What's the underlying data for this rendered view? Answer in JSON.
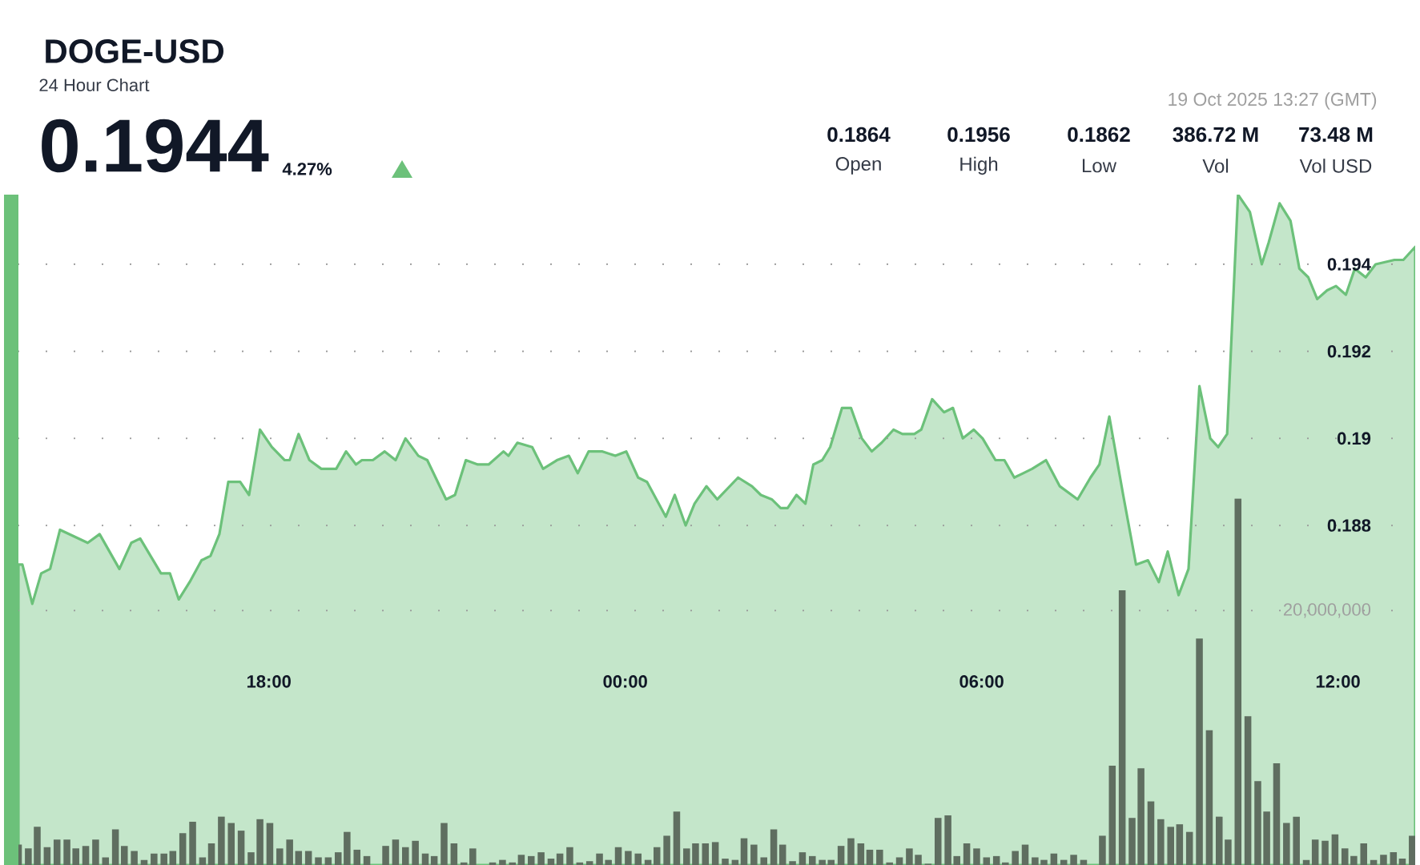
{
  "chart_data": {
    "type": "area",
    "title": "DOGE-USD",
    "subtitle": "24 Hour Chart",
    "annotations": [
      "0.1944",
      "4.27%",
      "19 Oct 2025 13:27 (GMT)",
      "0.1864",
      "0.1956",
      "0.1862",
      "386.72 M",
      "73.48 M",
      "Open",
      "High",
      "Low",
      "Vol",
      "Vol USD"
    ],
    "xlim": [
      "2025-10-18T13:47",
      "2025-10-19T13:18"
    ],
    "xticks": [
      {
        "value": "2025-10-18T18:00",
        "label": "18:00"
      },
      {
        "value": "2025-10-19T00:00",
        "label": "00:00"
      },
      {
        "value": "2025-10-19T06:00",
        "label": "06:00"
      },
      {
        "value": "2025-10-19T12:00",
        "label": "12:00"
      }
    ],
    "ylim": [
      0.1802,
      0.1956
    ],
    "yticks": [
      0.188,
      0.19,
      0.192,
      0.194
    ],
    "y2lim": [
      0,
      52700000
    ],
    "y2ticks": [
      {
        "value": 20000000,
        "label": "20,000,000"
      }
    ],
    "grid": "y",
    "series": [
      {
        "color": "#6cc17a",
        "x": [
          "2025-10-18T13:47",
          "2025-10-18T13:51",
          "2025-10-18T14:01",
          "2025-10-18T14:10",
          "2025-10-18T14:19",
          "2025-10-18T14:29",
          "2025-10-18T14:57",
          "2025-10-18T15:09",
          "2025-10-18T15:29",
          "2025-10-18T15:41",
          "2025-10-18T15:50",
          "2025-10-18T16:11",
          "2025-10-18T16:20",
          "2025-10-18T16:29",
          "2025-10-18T16:40",
          "2025-10-18T16:52",
          "2025-10-18T17:01",
          "2025-10-18T17:10",
          "2025-10-18T17:19",
          "2025-10-18T17:31",
          "2025-10-18T17:40",
          "2025-10-18T17:51",
          "2025-10-18T18:03",
          "2025-10-18T18:16",
          "2025-10-18T18:21",
          "2025-10-18T18:30",
          "2025-10-18T18:41",
          "2025-10-18T18:53",
          "2025-10-18T19:08",
          "2025-10-18T19:18",
          "2025-10-18T19:28",
          "2025-10-18T19:34",
          "2025-10-18T19:45",
          "2025-10-18T19:57",
          "2025-10-18T20:08",
          "2025-10-18T20:18",
          "2025-10-18T20:31",
          "2025-10-18T20:40",
          "2025-10-18T20:59",
          "2025-10-18T21:08",
          "2025-10-18T21:19",
          "2025-10-18T21:31",
          "2025-10-18T21:42",
          "2025-10-18T21:57",
          "2025-10-18T22:02",
          "2025-10-18T22:11",
          "2025-10-18T22:26",
          "2025-10-18T22:37",
          "2025-10-18T22:51",
          "2025-10-18T23:03",
          "2025-10-18T23:12",
          "2025-10-18T23:23",
          "2025-10-18T23:37",
          "2025-10-18T23:50",
          "2025-10-19T00:01",
          "2025-10-19T00:13",
          "2025-10-19T00:22",
          "2025-10-19T00:41",
          "2025-10-19T00:50",
          "2025-10-19T01:01",
          "2025-10-19T01:10",
          "2025-10-19T01:22",
          "2025-10-19T01:33",
          "2025-10-19T01:54",
          "2025-10-19T02:08",
          "2025-10-19T02:17",
          "2025-10-19T02:28",
          "2025-10-19T02:37",
          "2025-10-19T02:44",
          "2025-10-19T02:53",
          "2025-10-19T03:02",
          "2025-10-19T03:10",
          "2025-10-19T03:19",
          "2025-10-19T03:27",
          "2025-10-19T03:39",
          "2025-10-19T03:48",
          "2025-10-19T03:59",
          "2025-10-19T04:09",
          "2025-10-19T04:19",
          "2025-10-19T04:31",
          "2025-10-19T04:40",
          "2025-10-19T04:52",
          "2025-10-19T04:59",
          "2025-10-19T05:10",
          "2025-10-19T05:22",
          "2025-10-19T05:31",
          "2025-10-19T05:41",
          "2025-10-19T05:52",
          "2025-10-19T06:01",
          "2025-10-19T06:14",
          "2025-10-19T06:23",
          "2025-10-19T06:33",
          "2025-10-19T06:42",
          "2025-10-19T06:51",
          "2025-10-19T07:05",
          "2025-10-19T07:19",
          "2025-10-19T07:37",
          "2025-10-19T07:50",
          "2025-10-19T07:59",
          "2025-10-19T08:09",
          "2025-10-19T08:23",
          "2025-10-19T08:36",
          "2025-10-19T08:48",
          "2025-10-19T08:59",
          "2025-10-19T09:08",
          "2025-10-19T09:19",
          "2025-10-19T09:29",
          "2025-10-19T09:40",
          "2025-10-19T09:51",
          "2025-10-19T09:59",
          "2025-10-19T10:08",
          "2025-10-19T10:19",
          "2025-10-19T10:31",
          "2025-10-19T10:43",
          "2025-10-19T10:50",
          "2025-10-19T11:01",
          "2025-10-19T11:12",
          "2025-10-19T11:21",
          "2025-10-19T11:30",
          "2025-10-19T11:39",
          "2025-10-19T11:49",
          "2025-10-19T11:58",
          "2025-10-19T12:08",
          "2025-10-19T12:17",
          "2025-10-19T12:28",
          "2025-10-19T12:38",
          "2025-10-19T12:57",
          "2025-10-19T13:06",
          "2025-10-19T13:18"
        ],
        "values": [
          0.1871,
          0.1871,
          0.1862,
          0.1869,
          0.187,
          0.1879,
          0.1876,
          0.1878,
          0.187,
          0.1876,
          0.1877,
          0.1869,
          0.1869,
          0.1863,
          0.1867,
          0.1872,
          0.1873,
          0.1878,
          0.189,
          0.189,
          0.1887,
          0.1902,
          0.1898,
          0.1895,
          0.1895,
          0.1901,
          0.1895,
          0.1893,
          0.1893,
          0.1897,
          0.1894,
          0.1895,
          0.1895,
          0.1897,
          0.1895,
          0.19,
          0.1896,
          0.1895,
          0.1886,
          0.1887,
          0.1895,
          0.1894,
          0.1894,
          0.1897,
          0.1896,
          0.1899,
          0.1898,
          0.1893,
          0.1895,
          0.1896,
          0.1892,
          0.1897,
          0.1897,
          0.1896,
          0.1897,
          0.1891,
          0.189,
          0.1882,
          0.1887,
          0.188,
          0.1885,
          0.1889,
          0.1886,
          0.1891,
          0.1889,
          0.1887,
          0.1886,
          0.1884,
          0.1884,
          0.1887,
          0.1885,
          0.1894,
          0.1895,
          0.1898,
          0.1907,
          0.1907,
          0.19,
          0.1897,
          0.1899,
          0.1902,
          0.1901,
          0.1901,
          0.1902,
          0.1909,
          0.1906,
          0.1907,
          0.19,
          0.1902,
          0.19,
          0.1895,
          0.1895,
          0.1891,
          0.1892,
          0.1893,
          0.1895,
          0.1889,
          0.1886,
          0.1891,
          0.1894,
          0.1905,
          0.1887,
          0.1871,
          0.1872,
          0.1867,
          0.1874,
          0.1864,
          0.187,
          0.1912,
          0.19,
          0.1898,
          0.1901,
          0.1956,
          0.1952,
          0.194,
          0.1945,
          0.1954,
          0.195,
          0.1939,
          0.1937,
          0.1932,
          0.1934,
          0.1935,
          0.1933,
          0.1939,
          0.1937,
          0.194,
          0.1941,
          0.1941,
          0.1944
        ]
      },
      {
        "type": "bar",
        "axis": "y2",
        "color": "#5f6e60",
        "x": [
          "2025-10-18T13:47",
          "2025-10-18T13:57",
          "2025-10-18T14:06",
          "2025-10-18T14:16",
          "2025-10-18T14:26",
          "2025-10-18T14:36",
          "2025-10-18T14:45",
          "2025-10-18T14:55",
          "2025-10-18T15:05",
          "2025-10-18T15:15",
          "2025-10-18T15:25",
          "2025-10-18T15:34",
          "2025-10-18T15:44",
          "2025-10-18T15:54",
          "2025-10-18T16:04",
          "2025-10-18T16:14",
          "2025-10-18T16:23",
          "2025-10-18T16:33",
          "2025-10-18T16:43",
          "2025-10-18T16:53",
          "2025-10-18T17:02",
          "2025-10-18T17:12",
          "2025-10-18T17:22",
          "2025-10-18T17:32",
          "2025-10-18T17:42",
          "2025-10-18T17:51",
          "2025-10-18T18:01",
          "2025-10-18T18:11",
          "2025-10-18T18:21",
          "2025-10-18T18:30",
          "2025-10-18T18:40",
          "2025-10-18T18:50",
          "2025-10-18T19:00",
          "2025-10-18T19:10",
          "2025-10-18T19:19",
          "2025-10-18T19:29",
          "2025-10-18T19:39",
          "2025-10-18T19:49",
          "2025-10-18T19:58",
          "2025-10-18T20:08",
          "2025-10-18T20:18",
          "2025-10-18T20:28",
          "2025-10-18T20:38",
          "2025-10-18T20:47",
          "2025-10-18T20:57",
          "2025-10-18T21:07",
          "2025-10-18T21:17",
          "2025-10-18T21:26",
          "2025-10-18T21:36",
          "2025-10-18T21:46",
          "2025-10-18T21:56",
          "2025-10-18T22:06",
          "2025-10-18T22:15",
          "2025-10-18T22:25",
          "2025-10-18T22:35",
          "2025-10-18T22:45",
          "2025-10-18T22:54",
          "2025-10-18T23:04",
          "2025-10-18T23:14",
          "2025-10-18T23:24",
          "2025-10-18T23:34",
          "2025-10-18T23:43",
          "2025-10-18T23:53",
          "2025-10-19T00:03",
          "2025-10-19T00:13",
          "2025-10-19T00:23",
          "2025-10-19T00:32",
          "2025-10-19T00:42",
          "2025-10-19T00:52",
          "2025-10-19T01:02",
          "2025-10-19T01:11",
          "2025-10-19T01:21",
          "2025-10-19T01:31",
          "2025-10-19T01:41",
          "2025-10-19T01:51",
          "2025-10-19T02:00",
          "2025-10-19T02:10",
          "2025-10-19T02:20",
          "2025-10-19T02:30",
          "2025-10-19T02:39",
          "2025-10-19T02:49",
          "2025-10-19T02:59",
          "2025-10-19T03:09",
          "2025-10-19T03:19",
          "2025-10-19T03:28",
          "2025-10-19T03:38",
          "2025-10-19T03:48",
          "2025-10-19T03:58",
          "2025-10-19T04:07",
          "2025-10-19T04:17",
          "2025-10-19T04:27",
          "2025-10-19T04:37",
          "2025-10-19T04:47",
          "2025-10-19T04:56",
          "2025-10-19T05:06",
          "2025-10-19T05:16",
          "2025-10-19T05:26",
          "2025-10-19T05:35",
          "2025-10-19T05:45",
          "2025-10-19T05:55",
          "2025-10-19T06:05",
          "2025-10-19T06:15",
          "2025-10-19T06:24",
          "2025-10-19T06:34",
          "2025-10-19T06:44",
          "2025-10-19T06:54",
          "2025-10-19T07:03",
          "2025-10-19T07:13",
          "2025-10-19T07:23",
          "2025-10-19T07:33",
          "2025-10-19T07:43",
          "2025-10-19T07:52",
          "2025-10-19T08:02",
          "2025-10-19T08:12",
          "2025-10-19T08:22",
          "2025-10-19T08:32",
          "2025-10-19T08:41",
          "2025-10-19T08:51",
          "2025-10-19T09:01",
          "2025-10-19T09:11",
          "2025-10-19T09:20",
          "2025-10-19T09:30",
          "2025-10-19T09:40",
          "2025-10-19T09:50",
          "2025-10-19T10:00",
          "2025-10-19T10:09",
          "2025-10-19T10:19",
          "2025-10-19T10:29",
          "2025-10-19T10:39",
          "2025-10-19T10:48",
          "2025-10-19T10:58",
          "2025-10-19T11:08",
          "2025-10-19T11:18",
          "2025-10-19T11:28",
          "2025-10-19T11:37",
          "2025-10-19T11:47",
          "2025-10-19T11:57",
          "2025-10-19T12:07",
          "2025-10-19T12:16",
          "2025-10-19T12:26",
          "2025-10-19T12:36",
          "2025-10-19T12:46",
          "2025-10-19T12:56",
          "2025-10-19T13:05",
          "2025-10-19T13:15"
        ],
        "values": [
          1600000,
          1300000,
          3000000,
          1400000,
          2000000,
          2000000,
          1300000,
          1500000,
          2000000,
          600000,
          2800000,
          1500000,
          1100000,
          400000,
          900000,
          900000,
          1100000,
          2500000,
          3400000,
          600000,
          1700000,
          3800000,
          3300000,
          2700000,
          1000000,
          3600000,
          3300000,
          1300000,
          2000000,
          1100000,
          1100000,
          600000,
          600000,
          1000000,
          2600000,
          1200000,
          700000,
          null,
          1500000,
          2000000,
          1400000,
          1900000,
          900000,
          700000,
          3300000,
          1700000,
          200000,
          1300000,
          null,
          200000,
          400000,
          200000,
          800000,
          700000,
          1000000,
          500000,
          900000,
          1400000,
          200000,
          300000,
          900000,
          400000,
          1400000,
          1100000,
          900000,
          400000,
          1400000,
          2300000,
          4200000,
          1300000,
          1700000,
          1700000,
          1800000,
          500000,
          400000,
          2100000,
          1600000,
          600000,
          2800000,
          1600000,
          300000,
          1000000,
          700000,
          400000,
          400000,
          1500000,
          2100000,
          1700000,
          1200000,
          1200000,
          200000,
          600000,
          1300000,
          800000,
          100000,
          3700000,
          3900000,
          700000,
          1700000,
          1300000,
          600000,
          700000,
          200000,
          1100000,
          1600000,
          600000,
          400000,
          900000,
          400000,
          800000,
          400000,
          null,
          2300000,
          7800000,
          21600000,
          3700000,
          7600000,
          5000000,
          3600000,
          3000000,
          3200000,
          2600000,
          17800000,
          10600000,
          3800000,
          2000000,
          28800000,
          11700000,
          6600000,
          4200000,
          8000000,
          3300000,
          3800000,
          400000,
          2000000,
          1900000,
          2400000,
          1300000,
          700000,
          1700000,
          400000,
          800000,
          1000000,
          500000,
          2300000
        ]
      }
    ]
  }
}
